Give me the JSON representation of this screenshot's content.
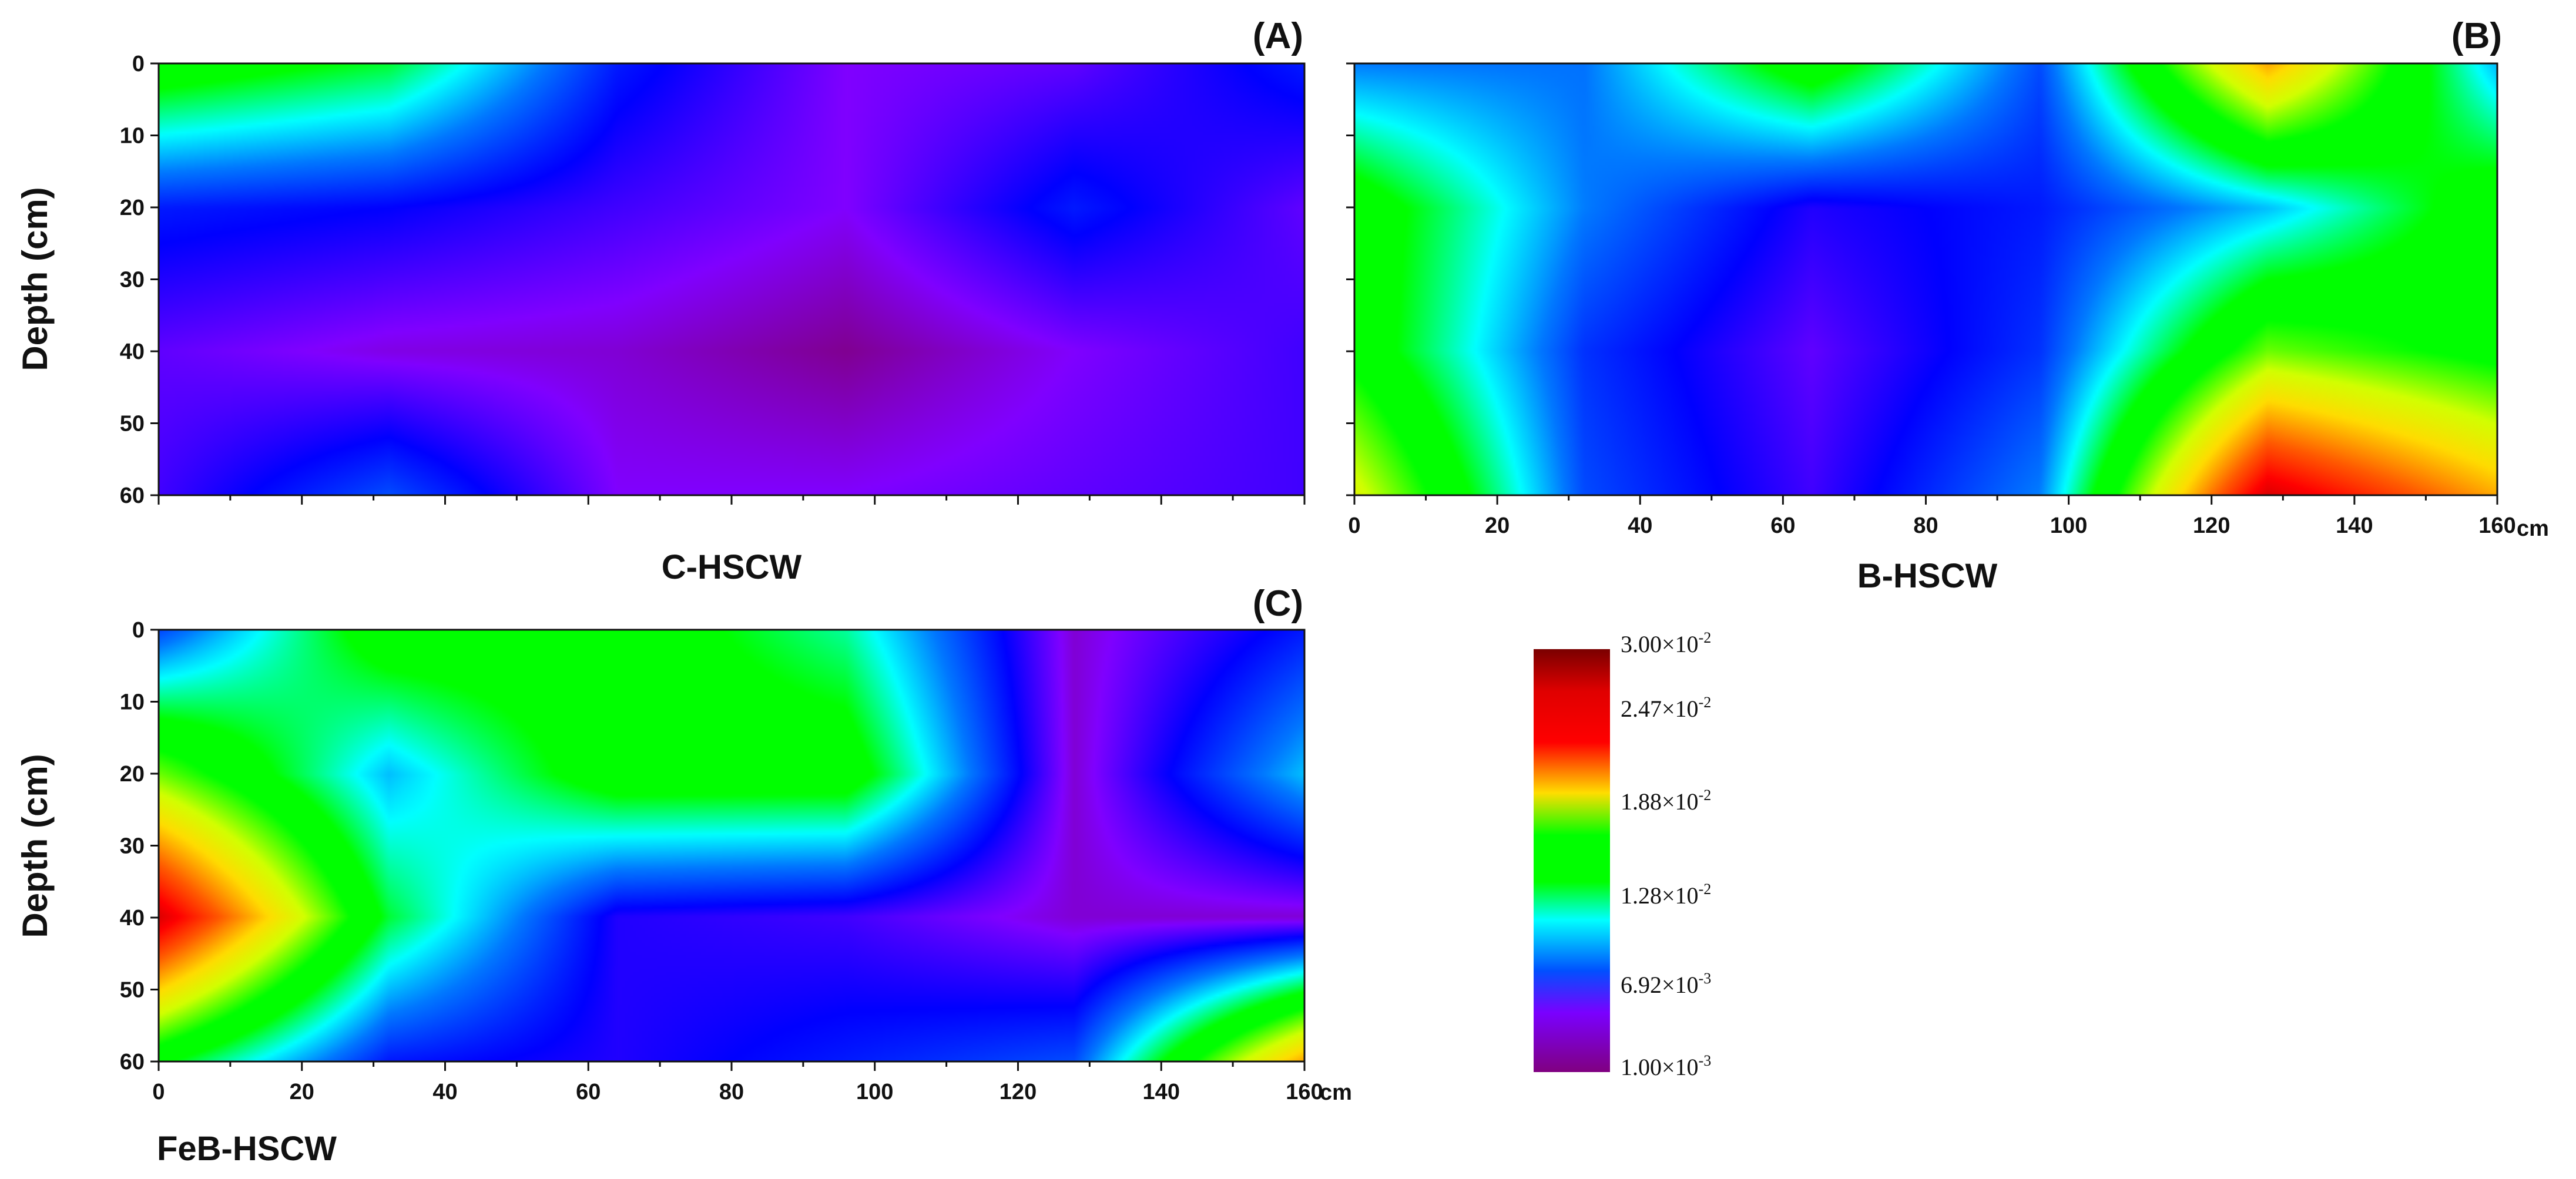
{
  "figure": {
    "colorbar": {
      "labels": [
        {
          "mantissa": "3.00",
          "sup": "-2"
        },
        {
          "mantissa": "2.47",
          "sup": "-2"
        },
        {
          "mantissa": "1.88",
          "sup": "-2"
        },
        {
          "mantissa": "1.28",
          "sup": "-2"
        },
        {
          "mantissa": "6.92",
          "sup": "-3"
        },
        {
          "mantissa": "1.00",
          "sup": "-3"
        }
      ],
      "times": "×10",
      "values": [
        0.03,
        0.0247,
        0.0188,
        0.0128,
        0.00692,
        0.001
      ],
      "colors": [
        "#7a0000",
        "#ff0000",
        "#ffff00",
        "#00ff00",
        "#00ffff",
        "#0000ff",
        "#8000ff",
        "#800080"
      ]
    }
  },
  "chart_data": [
    {
      "type": "heatmap",
      "panel_label": "(A)",
      "xlabel": "C-HSCW",
      "ylabel": "Depth (cm)",
      "x_unit": "",
      "yticks": [
        "0",
        "10",
        "20",
        "30",
        "40",
        "50",
        "60"
      ],
      "xticks": [],
      "xlim": [
        0,
        160
      ],
      "ylim": [
        0,
        60
      ],
      "depths": [
        0,
        20,
        40,
        60
      ],
      "distances": [
        0,
        32,
        64,
        96,
        128,
        160
      ],
      "values": [
        [
          0.0128,
          0.011,
          0.005,
          0.0025,
          0.003,
          0.005
        ],
        [
          0.005,
          0.0045,
          0.0035,
          0.0025,
          0.005,
          0.003
        ],
        [
          0.003,
          0.0022,
          0.002,
          0.0012,
          0.0025,
          0.0035
        ],
        [
          0.0035,
          0.006,
          0.0025,
          0.0025,
          0.003,
          0.0035
        ]
      ]
    },
    {
      "type": "heatmap",
      "panel_label": "(B)",
      "xlabel": "B-HSCW",
      "ylabel": "",
      "x_unit": "cm",
      "yticks": [],
      "xticks": [
        "0",
        "20",
        "40",
        "60",
        "80",
        "100",
        "120",
        "140",
        "160"
      ],
      "xlim": [
        0,
        160
      ],
      "ylim": [
        0,
        60
      ],
      "depths": [
        0,
        20,
        40,
        60
      ],
      "distances": [
        0,
        32,
        64,
        96,
        128,
        160
      ],
      "values": [
        [
          0.007,
          0.0068,
          0.0128,
          0.006,
          0.02,
          0.008
        ],
        [
          0.0128,
          0.007,
          0.004,
          0.005,
          0.008,
          0.0128
        ],
        [
          0.0128,
          0.0055,
          0.003,
          0.0055,
          0.015,
          0.0128
        ],
        [
          0.017,
          0.006,
          0.0035,
          0.007,
          0.026,
          0.02
        ]
      ]
    },
    {
      "type": "heatmap",
      "panel_label": "(C)",
      "xlabel": "FeB-HSCW",
      "ylabel": "Depth (cm)",
      "x_unit": "cm",
      "yticks": [
        "0",
        "10",
        "20",
        "30",
        "40",
        "50",
        "60"
      ],
      "xticks": [
        "0",
        "20",
        "40",
        "60",
        "80",
        "100",
        "120",
        "140",
        "160"
      ],
      "xlim": [
        0,
        160
      ],
      "ylim": [
        0,
        60
      ],
      "depths": [
        0,
        20,
        40,
        60
      ],
      "distances": [
        0,
        32,
        64,
        96,
        128,
        160
      ],
      "values": [
        [
          0.006,
          0.0128,
          0.0128,
          0.01,
          0.002,
          0.005
        ],
        [
          0.015,
          0.008,
          0.0128,
          0.0128,
          0.002,
          0.008
        ],
        [
          0.026,
          0.011,
          0.004,
          0.0035,
          0.002,
          0.002
        ],
        [
          0.012,
          0.005,
          0.004,
          0.005,
          0.006,
          0.02
        ]
      ]
    }
  ]
}
